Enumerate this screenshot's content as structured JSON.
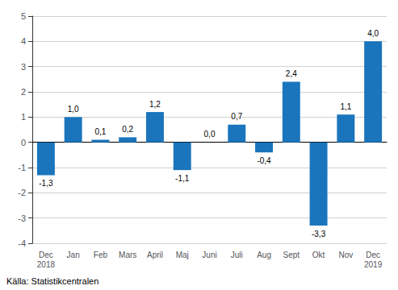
{
  "chart_data": {
    "type": "bar",
    "categories": [
      "Dec\n2018",
      "Jan",
      "Feb",
      "Mars",
      "April",
      "Maj",
      "Juni",
      "Juli",
      "Aug",
      "Sept",
      "Okt",
      "Nov",
      "Dec\n2019"
    ],
    "values": [
      -1.3,
      1.0,
      0.1,
      0.2,
      1.2,
      -1.1,
      0.0,
      0.7,
      -0.4,
      2.4,
      -3.3,
      1.1,
      4.0
    ],
    "value_labels": [
      "-1,3",
      "1,0",
      "0,1",
      "0,2",
      "1,2",
      "-1,1",
      "0,0",
      "0,7",
      "-0,4",
      "2,4",
      "-3,3",
      "1,1",
      "4,0"
    ],
    "color": "#1a75bc",
    "ylim": [
      -4,
      5
    ],
    "yticks": [
      -4,
      -3,
      -2,
      -1,
      0,
      1,
      2,
      3,
      4,
      5
    ],
    "grid": true,
    "annotation": "Källa: Statistikcentralen"
  }
}
